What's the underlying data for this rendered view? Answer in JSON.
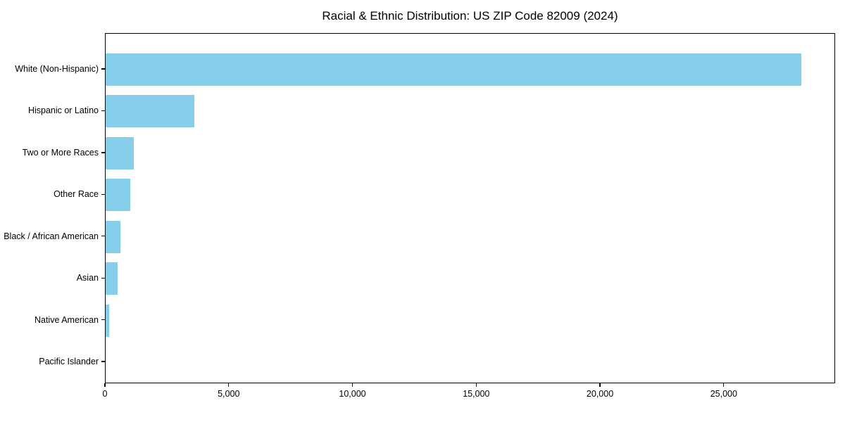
{
  "chart_data": {
    "type": "bar",
    "orientation": "horizontal",
    "title": "Racial & Ethnic Distribution: US ZIP Code 82009 (2024)",
    "categories": [
      "White (Non-Hispanic)",
      "Hispanic or Latino",
      "Two or More Races",
      "Other Race",
      "Black / African American",
      "Asian",
      "Native American",
      "Pacific Islander"
    ],
    "values": [
      28100,
      3580,
      1140,
      1000,
      600,
      480,
      140,
      0
    ],
    "xlabel": "",
    "ylabel": "",
    "xlim": [
      0,
      29500
    ],
    "x_ticks": [
      {
        "value": 0,
        "label": "0"
      },
      {
        "value": 5000,
        "label": "5,000"
      },
      {
        "value": 10000,
        "label": "10,000"
      },
      {
        "value": 15000,
        "label": "15,000"
      },
      {
        "value": 20000,
        "label": "20,000"
      },
      {
        "value": 25000,
        "label": "25,000"
      }
    ],
    "grid": false,
    "legend": null,
    "bar_color": "#87CEEB",
    "text_color": "#000000",
    "background_color": "#FFFFFF",
    "spine_color": "#000000"
  }
}
